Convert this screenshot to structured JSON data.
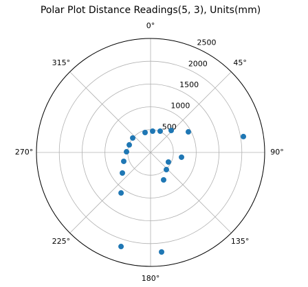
{
  "chart_data": {
    "type": "scatter",
    "polar": true,
    "title": "Polar Plot Distance Readings(5, 3), Units(mm)",
    "theta_zero": "top",
    "theta_direction": "clockwise",
    "x": [
      80.3,
      61.4,
      43.2,
      24.3,
      5.5,
      344.6,
      309,
      289.5,
      271.6,
      251.6,
      233.8,
      216,
      197.4,
      173.7,
      154.6,
      137.4,
      118.3,
      98.8
    ],
    "values": [
      2063,
      943,
      661,
      512,
      469,
      453,
      503,
      495,
      527,
      619,
      765,
      1099,
      2163,
      2197,
      667,
      512,
      444,
      686
    ],
    "color": "#1f77b4",
    "xlim": [
      0,
      360
    ],
    "xticks": [
      {
        "value": 0,
        "label": "0°"
      },
      {
        "value": 45,
        "label": "45°"
      },
      {
        "value": 90,
        "label": "90°"
      },
      {
        "value": 135,
        "label": "135°"
      },
      {
        "value": 180,
        "label": "180°"
      },
      {
        "value": 225,
        "label": "225°"
      },
      {
        "value": 270,
        "label": "270°"
      },
      {
        "value": 315,
        "label": "315°"
      }
    ],
    "ylim": [
      0,
      2500
    ],
    "yticks": [
      500,
      1000,
      1500,
      2000,
      2500
    ],
    "grid": true
  }
}
